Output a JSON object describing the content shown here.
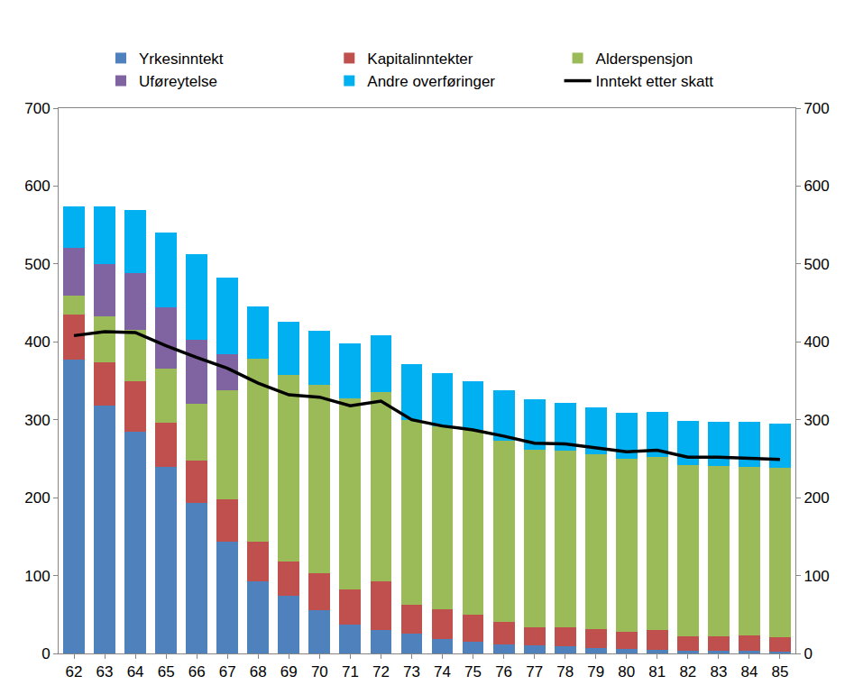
{
  "chart_data": {
    "type": "bar",
    "stacked": true,
    "legend": "top",
    "grid": false,
    "categories": [
      "62",
      "63",
      "64",
      "65",
      "66",
      "67",
      "68",
      "69",
      "70",
      "71",
      "72",
      "73",
      "74",
      "75",
      "76",
      "77",
      "78",
      "79",
      "80",
      "81",
      "82",
      "83",
      "84",
      "85"
    ],
    "ylim": [
      0,
      700
    ],
    "yticks": [
      0,
      100,
      200,
      300,
      400,
      500,
      600,
      700
    ],
    "y2lim": [
      0,
      700
    ],
    "y2ticks": [
      0,
      100,
      200,
      300,
      400,
      500,
      600,
      700
    ],
    "series": [
      {
        "name": "Yrkesinntekt",
        "color": "#4f81bd",
        "type": "bar",
        "values": [
          377,
          318,
          285,
          240,
          193,
          143,
          92,
          74,
          55,
          37,
          30,
          25,
          19,
          15,
          11,
          10,
          9,
          7,
          6,
          5,
          4,
          4,
          3,
          2
        ]
      },
      {
        "name": "Kapitalinntekter",
        "color": "#c0504d",
        "type": "bar",
        "values": [
          58,
          56,
          65,
          56,
          55,
          55,
          52,
          44,
          48,
          45,
          63,
          37,
          38,
          35,
          29,
          23,
          25,
          24,
          22,
          25,
          18,
          18,
          20,
          19
        ]
      },
      {
        "name": "Alderspensjon",
        "color": "#9bbb59",
        "type": "bar",
        "values": [
          24,
          59,
          65,
          70,
          72,
          140,
          234,
          240,
          242,
          246,
          243,
          238,
          235,
          237,
          233,
          229,
          226,
          225,
          222,
          222,
          220,
          219,
          217,
          217
        ]
      },
      {
        "name": "Uføreytelse",
        "color": "#8064a2",
        "type": "bar",
        "values": [
          62,
          67,
          73,
          78,
          83,
          46,
          0,
          0,
          0,
          0,
          0,
          0,
          0,
          0,
          0,
          0,
          0,
          0,
          0,
          0,
          0,
          0,
          0,
          0
        ]
      },
      {
        "name": "Andre overføringer",
        "color": "#00b0f0",
        "type": "bar",
        "values": [
          53,
          74,
          81,
          96,
          110,
          99,
          67,
          68,
          69,
          70,
          72,
          71,
          68,
          62,
          65,
          64,
          62,
          60,
          59,
          58,
          56,
          56,
          57,
          57
        ]
      },
      {
        "name": "Inntekt etter skatt",
        "color": "#000000",
        "type": "line",
        "values": [
          408,
          413,
          412,
          395,
          380,
          366,
          347,
          332,
          329,
          318,
          324,
          300,
          292,
          287,
          279,
          270,
          269,
          264,
          259,
          261,
          252,
          252,
          251,
          249
        ]
      }
    ]
  }
}
